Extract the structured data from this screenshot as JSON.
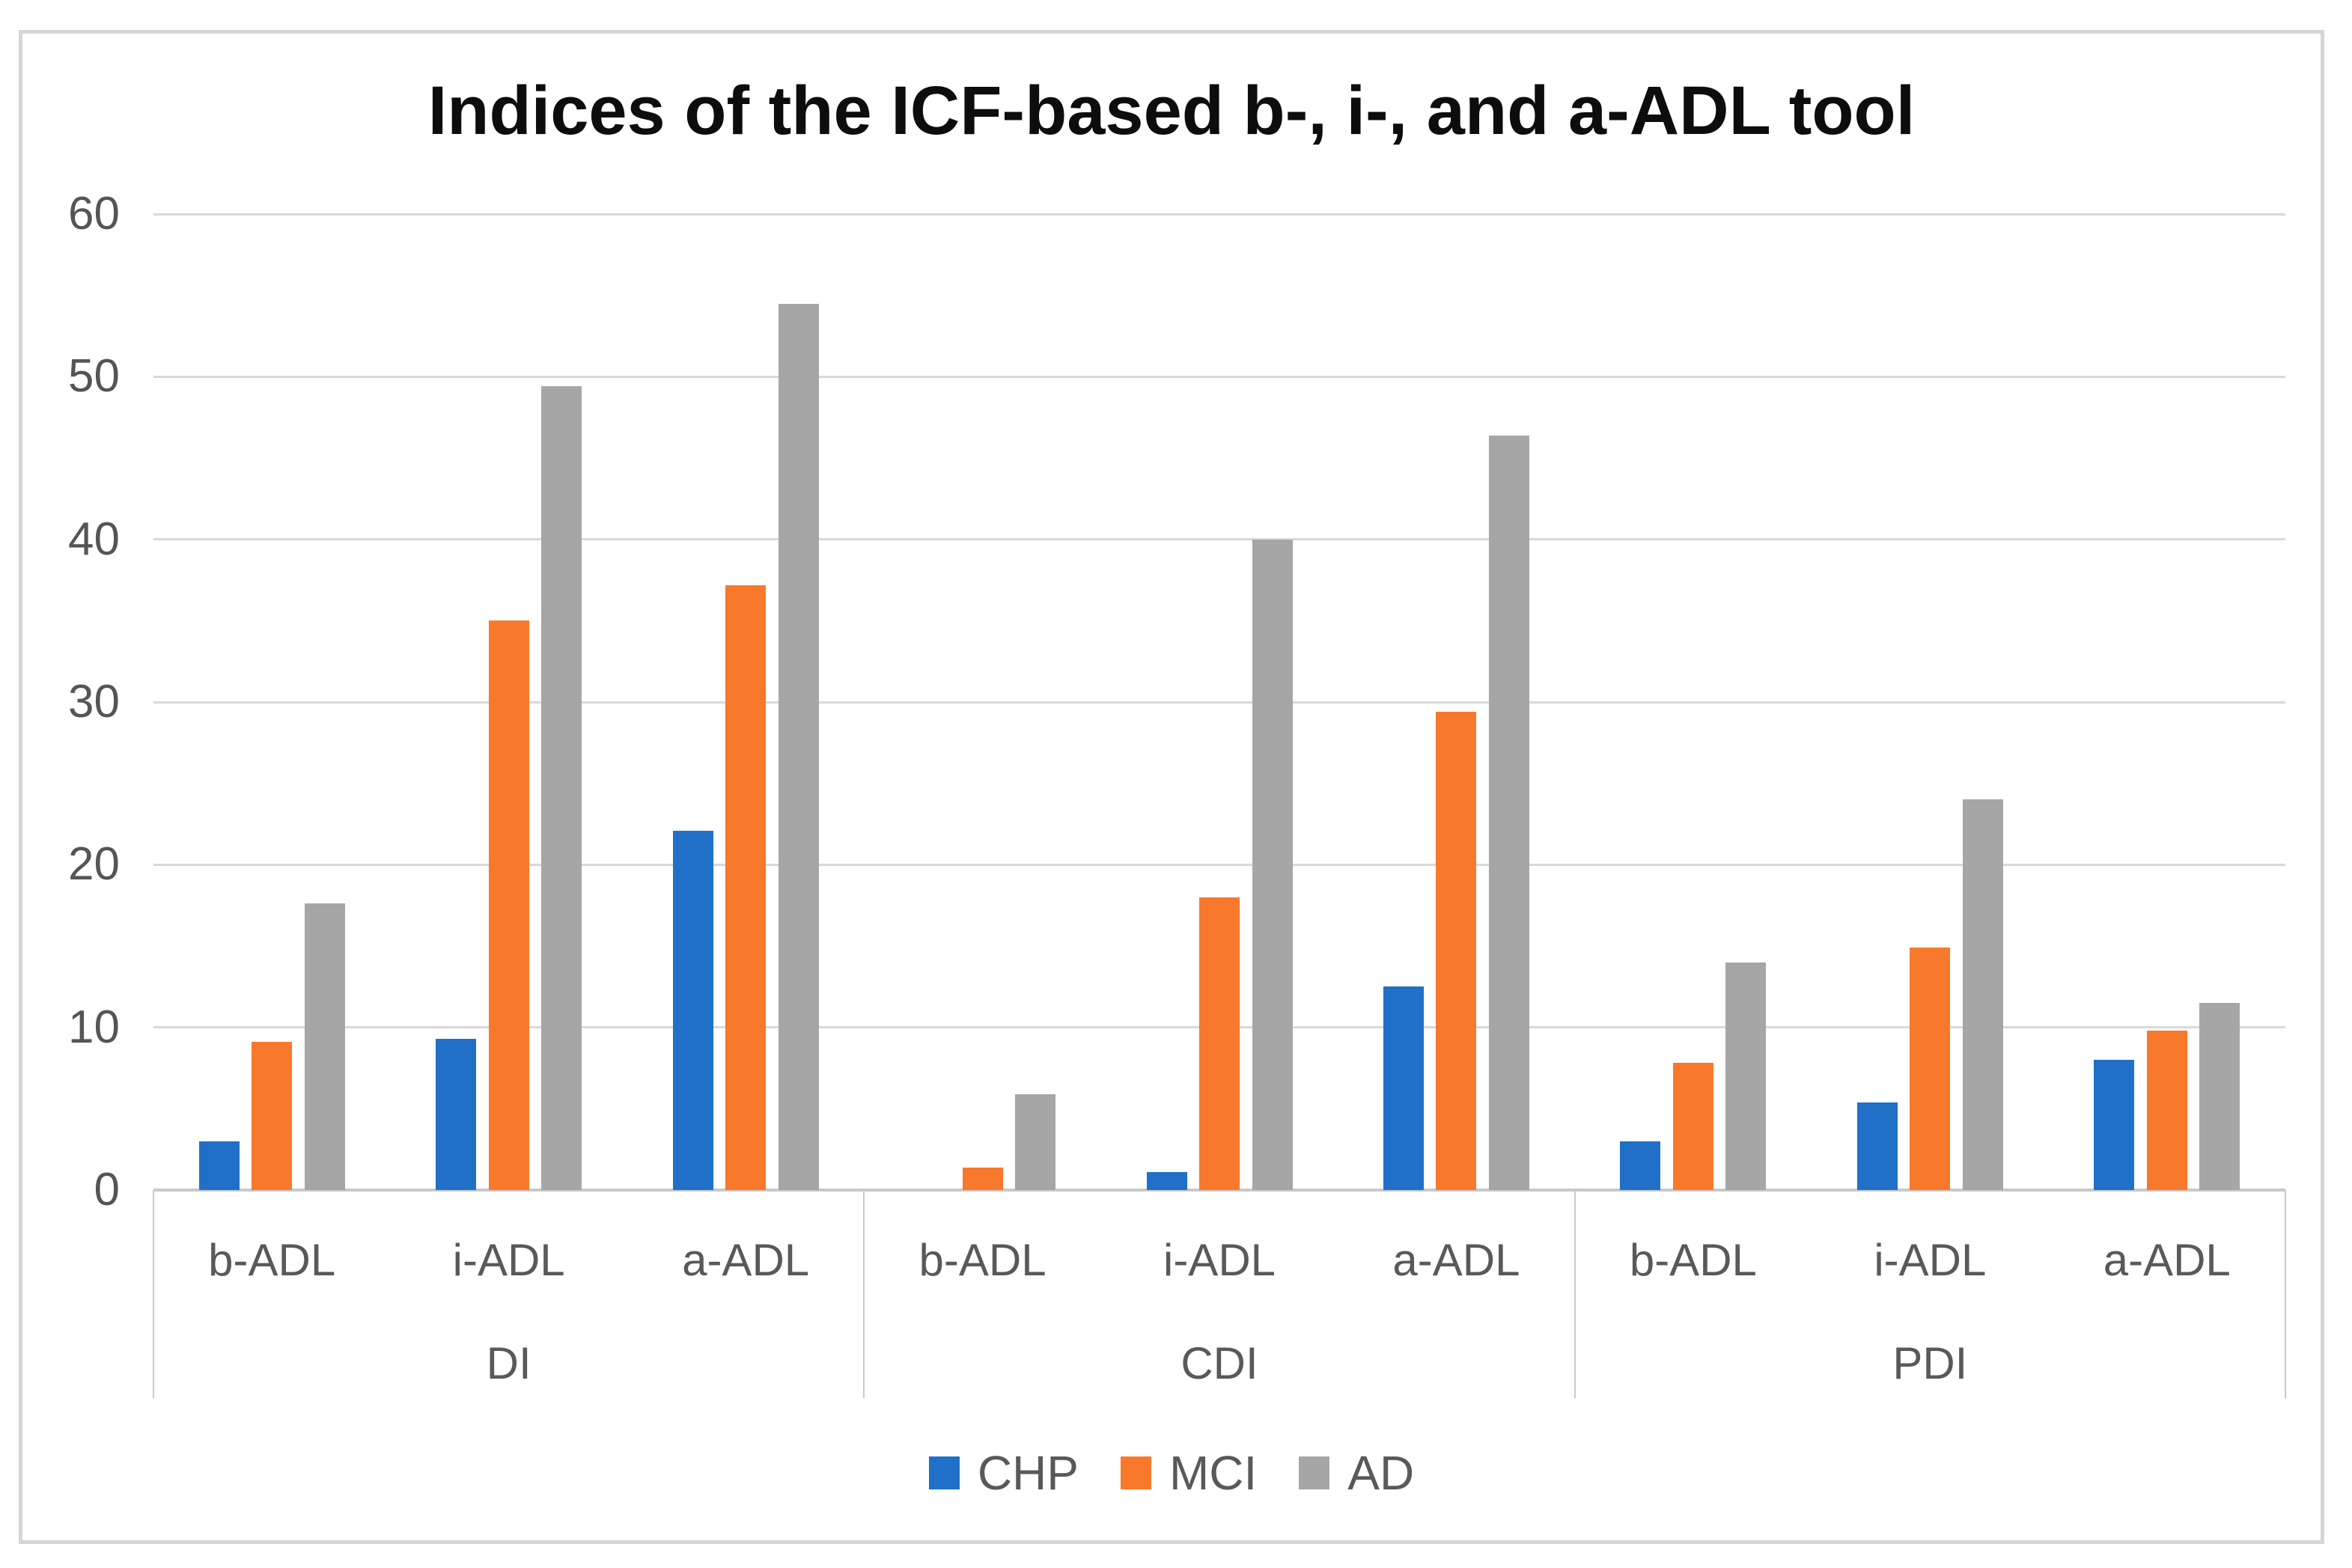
{
  "chart_data": {
    "type": "bar",
    "title": "Indices of the ICF-based b-, i-, and a-ADL tool",
    "xlabel": "",
    "ylabel": "",
    "y_axis": {
      "min": 0,
      "max": 60,
      "tick_step": 10,
      "ticks": [
        0,
        10,
        20,
        30,
        40,
        50,
        60
      ]
    },
    "grid": true,
    "legend_position": "bottom",
    "group_labels": [
      "DI",
      "CDI",
      "PDI"
    ],
    "categories": [
      "b-ADL",
      "i-ADL",
      "a-ADL",
      "b-ADL",
      "i-ADL",
      "a-ADL",
      "b-ADL",
      "i-ADL",
      "a-ADL"
    ],
    "series": [
      {
        "name": "CHP",
        "color": "#2070c8",
        "values": [
          3.0,
          9.3,
          22.1,
          0,
          1.1,
          12.5,
          3.0,
          5.4,
          8.0
        ]
      },
      {
        "name": "MCI",
        "color": "#f8792b",
        "values": [
          9.1,
          35.0,
          37.2,
          1.4,
          18.0,
          29.4,
          7.8,
          14.9,
          9.8
        ]
      },
      {
        "name": "AD",
        "color": "#a6a6a6",
        "values": [
          17.6,
          49.4,
          54.5,
          5.9,
          40.0,
          46.4,
          14.0,
          24.0,
          11.5
        ]
      }
    ],
    "colors": {
      "gridline": "#d9d9d9",
      "axis_line": "#c9c9c9",
      "text": "#595959",
      "title_text": "#0d0d0d",
      "frame_border": "#d6d6d6"
    }
  }
}
